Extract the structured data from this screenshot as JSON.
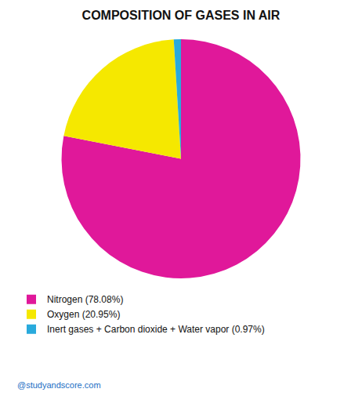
{
  "chart_data": {
    "type": "pie",
    "title": "COMPOSITION OF GASES IN AIR",
    "categories": [
      "Nitrogen (78.08%)",
      "Oxygen (20.95%)",
      "Inert gases + Carbon dioxide + Water vapor (0.97%)"
    ],
    "values": [
      78.08,
      20.95,
      0.97
    ],
    "colors": [
      "#E0189A",
      "#F5E800",
      "#29AADC"
    ],
    "legend": "bottom",
    "annotations": [
      "@studyandscore.com"
    ]
  }
}
